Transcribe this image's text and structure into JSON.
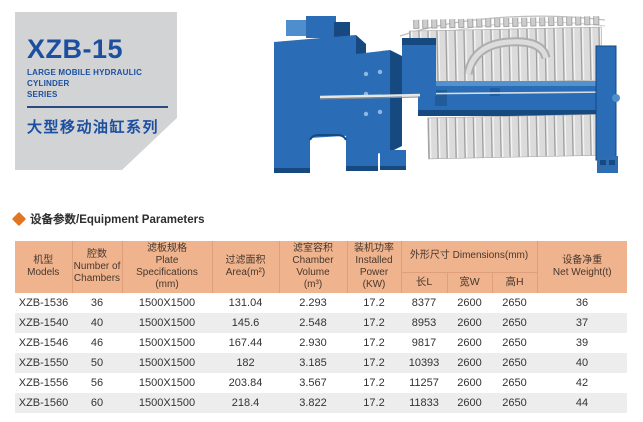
{
  "colors": {
    "brand_blue": "#1c4fa0",
    "divider_navy": "#2b4a80",
    "accent_orange": "#e2751f",
    "card_bg": "#d2d3d5",
    "table_header_bg": "#efb38e",
    "table_header_line": "#df9f7a",
    "row_stripe": "#ededed",
    "machine_blue": "#2a6cb5"
  },
  "product_card": {
    "model": "XZB-15",
    "series_en_line1": "LARGE MOBILE HYDRAULIC CYLINDER",
    "series_en_line2": "SERIES",
    "series_cn": "大型移动油缸系列"
  },
  "section": {
    "title": "设备参数/Equipment Parameters",
    "bullet_icon": "orange-diamond-icon"
  },
  "machine": {
    "description": "blue filter press machine illustration"
  },
  "table": {
    "head": {
      "models": {
        "cn": "机型",
        "en": "Models"
      },
      "chambers": {
        "cn": "腔数",
        "en": "Number of",
        "en2": "Chambers"
      },
      "plate": {
        "cn": "滤板规格",
        "en": "Plate Specifications",
        "en2": "(mm)"
      },
      "area": {
        "cn": "过滤面积",
        "en": "Area(m²)"
      },
      "volume": {
        "cn": "滤室容积",
        "en": "Chamber Volume",
        "en2": "(m³)"
      },
      "power": {
        "cn": "装机功率",
        "en": "Installed Power",
        "en2": "(KW)"
      },
      "dimensions": {
        "cn": "外形尺寸",
        "en": "Dimensions(mm)"
      },
      "length": "长L",
      "width": "宽W",
      "height": "高H",
      "weight": {
        "cn": "设备净重",
        "en": "Net Weight(t)"
      }
    },
    "rows": [
      [
        "XZB-1536",
        "36",
        "1500X1500",
        "131.04",
        "2.293",
        "17.2",
        "8377",
        "2600",
        "2650",
        "36"
      ],
      [
        "XZB-1540",
        "40",
        "1500X1500",
        "145.6",
        "2.548",
        "17.2",
        "8953",
        "2600",
        "2650",
        "37"
      ],
      [
        "XZB-1546",
        "46",
        "1500X1500",
        "167.44",
        "2.930",
        "17.2",
        "9817",
        "2600",
        "2650",
        "39"
      ],
      [
        "XZB-1550",
        "50",
        "1500X1500",
        "182",
        "3.185",
        "17.2",
        "10393",
        "2600",
        "2650",
        "40"
      ],
      [
        "XZB-1556",
        "56",
        "1500X1500",
        "203.84",
        "3.567",
        "17.2",
        "11257",
        "2600",
        "2650",
        "42"
      ],
      [
        "XZB-1560",
        "60",
        "1500X1500",
        "218.4",
        "3.822",
        "17.2",
        "11833",
        "2600",
        "2650",
        "44"
      ]
    ]
  }
}
